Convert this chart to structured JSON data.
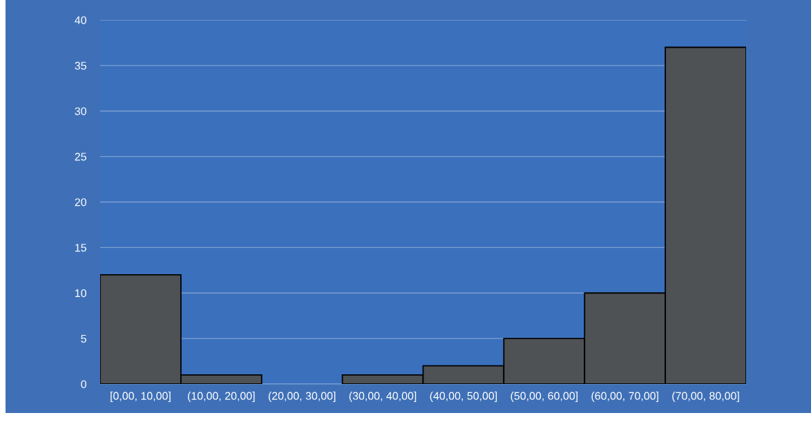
{
  "chart_data": {
    "type": "bar",
    "categories": [
      "[0,00, 10,00]",
      "(10,00, 20,00]",
      "(20,00, 30,00]",
      "(30,00, 40,00]",
      "(40,00, 50,00]",
      "(50,00, 60,00]",
      "(60,00, 70,00]",
      "(70,00, 80,00]"
    ],
    "values": [
      12,
      1,
      0,
      1,
      2,
      5,
      10,
      37
    ],
    "color": "#4f5254",
    "ylim": [
      0,
      40
    ],
    "yticks": [
      0,
      5,
      10,
      15,
      20,
      25,
      30,
      35,
      40
    ],
    "grid": "y"
  }
}
